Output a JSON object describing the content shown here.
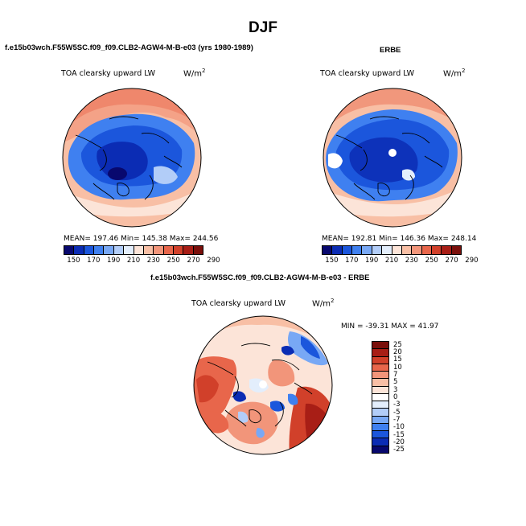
{
  "season": "DJF",
  "colors": {
    "abs_scale": [
      "#08086e",
      "#0b2cb4",
      "#1b56dc",
      "#3f80f0",
      "#78a8f5",
      "#b2cdf8",
      "#e3eefc",
      "#fce4d8",
      "#f8bfa5",
      "#f2957a",
      "#e8664b",
      "#d1402a",
      "#a81e16",
      "#7a0f0b"
    ],
    "diff_scale": [
      "#7a0f0b",
      "#a81e16",
      "#d1402a",
      "#e8664b",
      "#f2957a",
      "#f8bfa5",
      "#fce4d8",
      "#ffffff",
      "#e3eefc",
      "#b2cdf8",
      "#78a8f5",
      "#3f80f0",
      "#1b56dc",
      "#0b2cb4",
      "#08086e"
    ]
  },
  "panels": {
    "model": {
      "case_title": "f.e15b03wch.F55W5SC.f09_f09.CLB2-AGW4-M-B-e03 (yrs 1980-1989)",
      "var_label": "TOA clearsky upward LW",
      "unit_base": "W/m",
      "unit_exp": "2",
      "stats": "MEAN= 197.46  Min= 145.38  Max= 244.56"
    },
    "obs": {
      "case_title": "ERBE",
      "var_label": "TOA clearsky upward LW",
      "unit_base": "W/m",
      "unit_exp": "2",
      "stats": "MEAN= 192.81  Min= 146.36  Max= 248.14"
    },
    "diff": {
      "case_title": "f.e15b03wch.F55W5SC.f09_f09.CLB2-AGW4-M-B-e03 - ERBE",
      "var_label": "TOA clearsky upward LW",
      "unit_base": "W/m",
      "unit_exp": "2",
      "stats": "MIN = -39.31  MAX =  41.97"
    }
  },
  "colorbars": {
    "abs_ticks": [
      "150",
      "170",
      "190",
      "210",
      "230",
      "250",
      "270",
      "290"
    ],
    "diff_ticks": [
      "25",
      "20",
      "15",
      "10",
      "7",
      "5",
      "3",
      "0",
      "-3",
      "-5",
      "-7",
      "-10",
      "-15",
      "-20",
      "-25"
    ]
  }
}
